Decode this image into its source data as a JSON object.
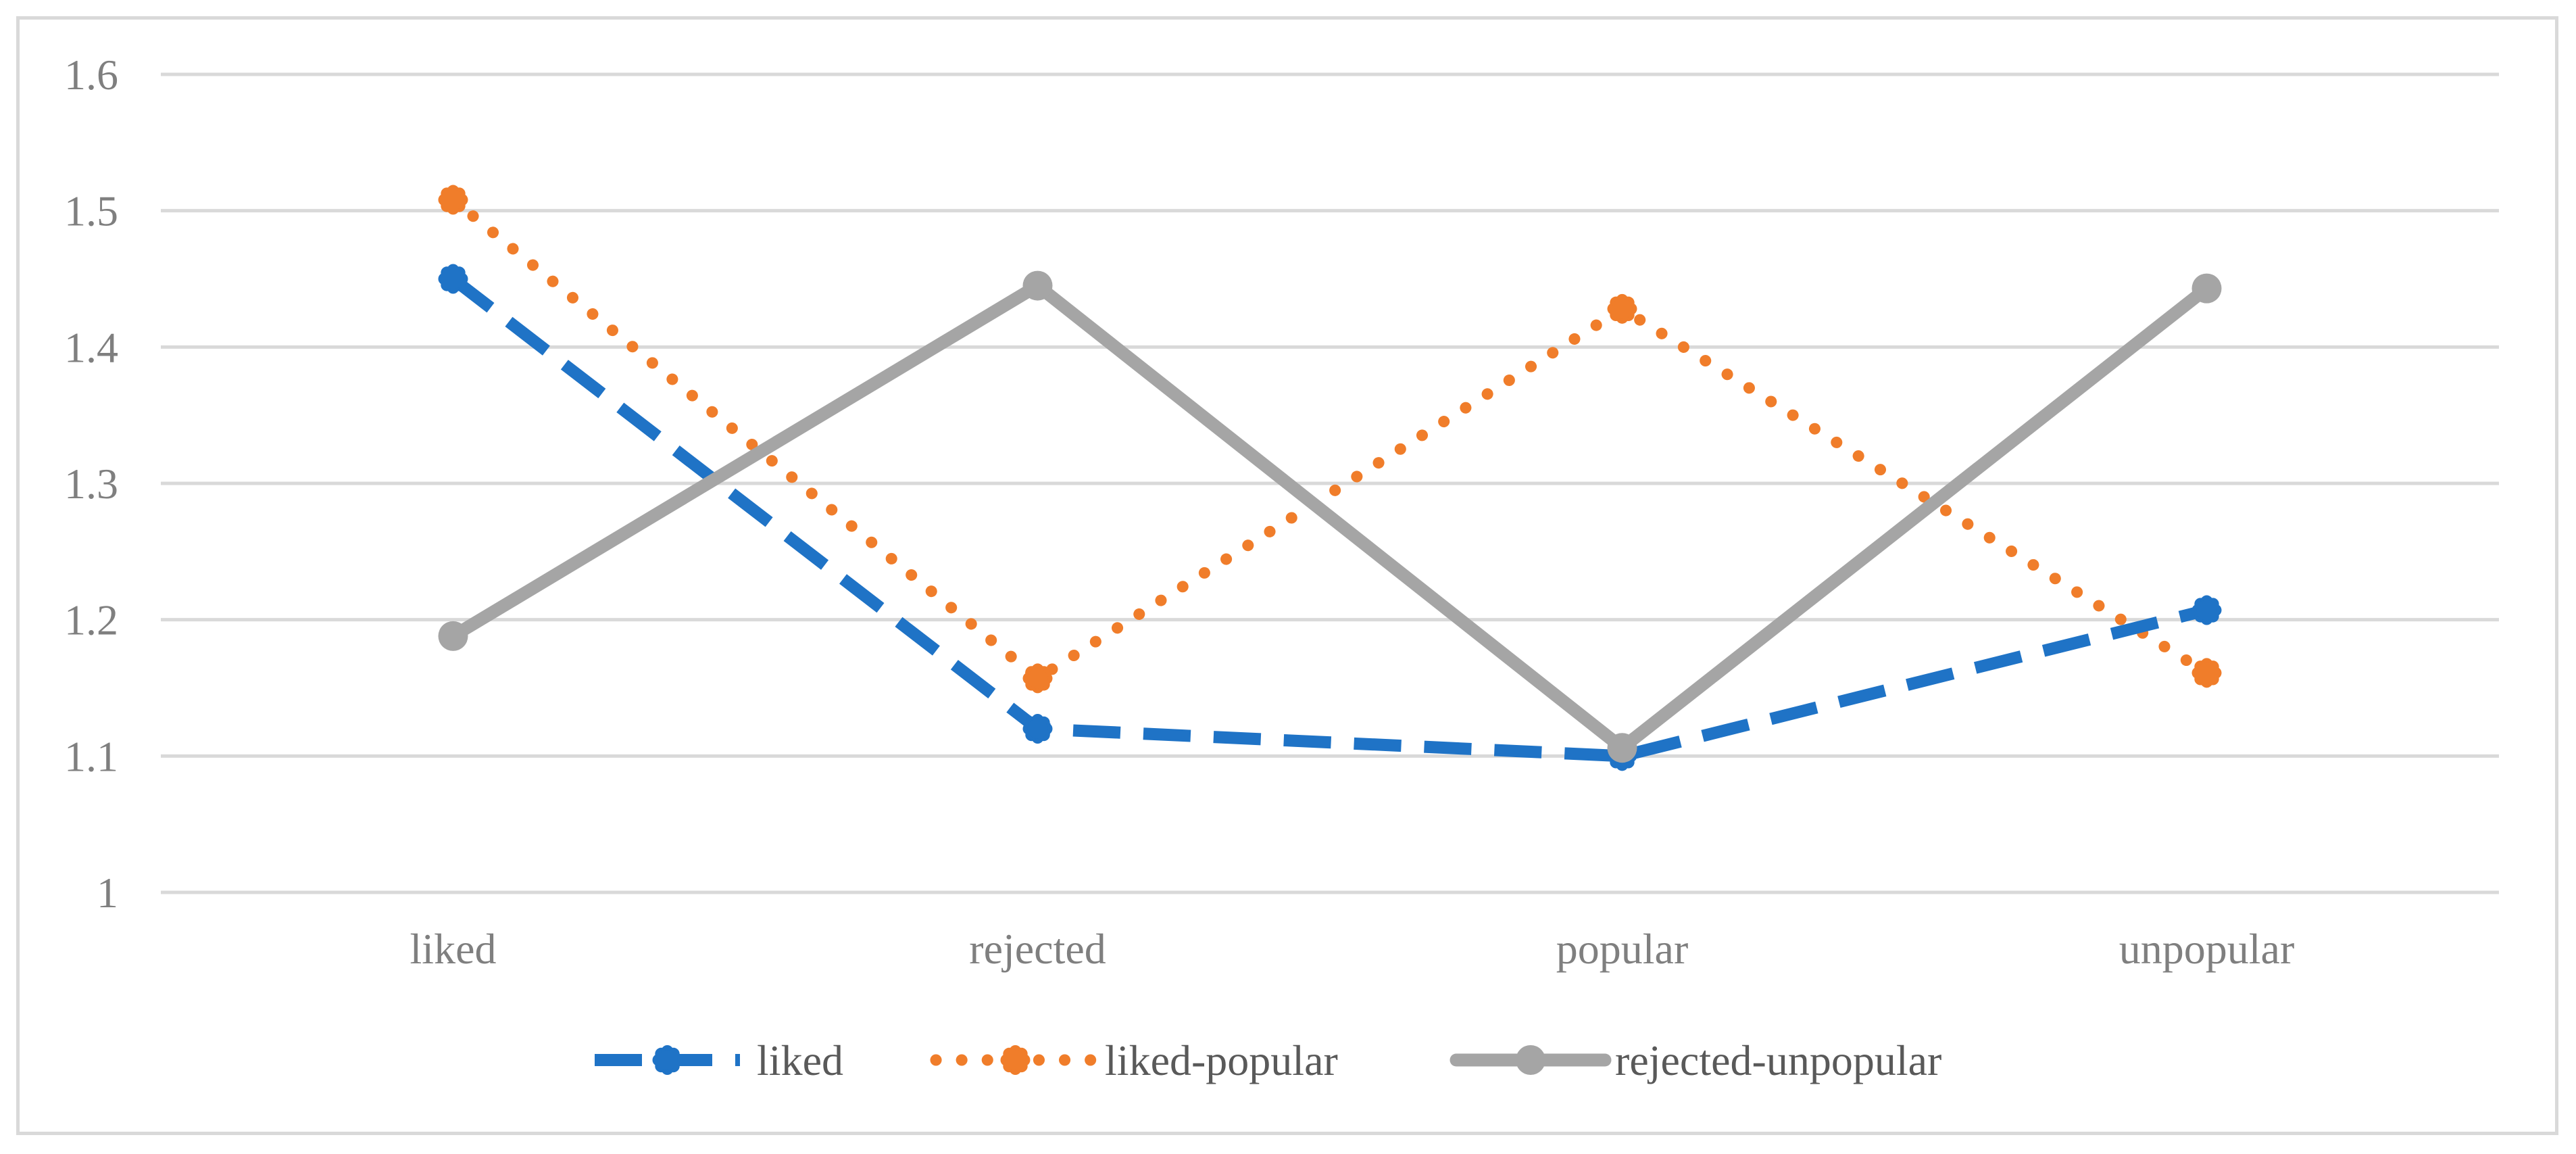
{
  "chart_data": {
    "type": "line",
    "title": "",
    "xlabel": "",
    "ylabel": "",
    "categories": [
      "liked",
      "rejected",
      "popular",
      "unpopular"
    ],
    "ylim": [
      1,
      1.6
    ],
    "yticks": [
      1,
      1.1,
      1.2,
      1.3,
      1.4,
      1.5,
      1.6
    ],
    "ytick_labels": [
      "1",
      "1.1",
      "1.2",
      "1.3",
      "1.4",
      "1.5",
      "1.6"
    ],
    "grid": true,
    "legend_position": "bottom",
    "series": [
      {
        "name": "liked",
        "values": [
          1.45,
          1.12,
          1.1,
          1.207
        ],
        "color": "#1f73c6",
        "style": "dashed"
      },
      {
        "name": "liked-popular",
        "values": [
          1.508,
          1.157,
          1.428,
          1.161
        ],
        "color": "#f07d2a",
        "style": "dotted"
      },
      {
        "name": "rejected-unpopular",
        "values": [
          1.188,
          1.445,
          1.106,
          1.443
        ],
        "color": "#a5a5a5",
        "style": "solid"
      }
    ]
  }
}
